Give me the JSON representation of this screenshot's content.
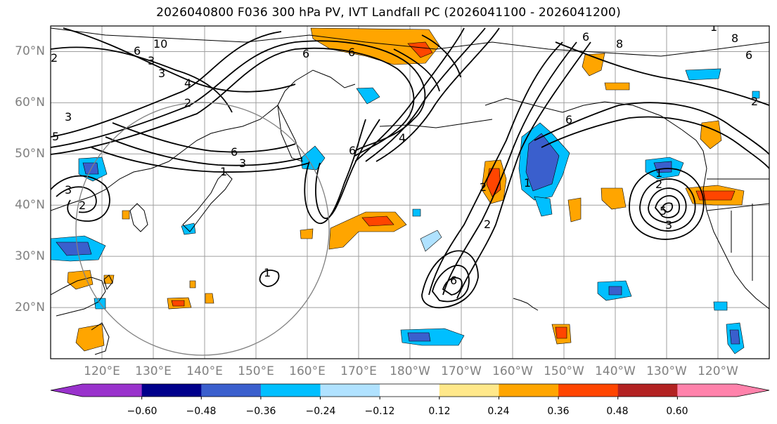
{
  "title": "2026040800 F036 300 hPa PV, IVT Landfall PC (2026041100 - 2026041200)",
  "map": {
    "projection": "PlateCarree",
    "lon_range_east": [
      110,
      250
    ],
    "lat_range": [
      10,
      75
    ],
    "lat_labels": [
      "70°N",
      "60°N",
      "50°N",
      "40°N",
      "30°N",
      "20°N"
    ],
    "lon_labels": [
      "120°E",
      "130°E",
      "140°E",
      "150°E",
      "160°E",
      "170°E",
      "180°W",
      "170°W",
      "160°W",
      "150°W",
      "140°W",
      "130°W",
      "120°W"
    ],
    "gridlines": true,
    "coastlines": true,
    "colors": {
      "coastline": "#000000",
      "gridline": "#808080",
      "contour": "#000000",
      "circle": "#808080",
      "tick_label": "#808080"
    },
    "contour_labels": [
      "10",
      "6",
      "3",
      "2",
      "4",
      "3",
      "2",
      "5",
      "3",
      "6",
      "1",
      "3",
      "6",
      "6",
      "4",
      "1",
      "3",
      "2",
      "6",
      "8",
      "6",
      "6",
      "1",
      "2",
      "2",
      "6",
      "8",
      "6",
      "1",
      "2",
      "3",
      "1",
      "5",
      "2"
    ]
  },
  "colorbar": {
    "extend": "both",
    "colors": [
      "#9932cc",
      "#00008b",
      "#3a5fcd",
      "#00bfff",
      "#b0e2ff",
      "#ffffff",
      "#ffe88a",
      "#ffa500",
      "#ff4500",
      "#b22222",
      "#ff82ab"
    ],
    "tick_labels": [
      "−0.60",
      "−0.48",
      "−0.36",
      "−0.24",
      "−0.12",
      "0.12",
      "0.24",
      "0.36",
      "0.48",
      "0.60"
    ]
  }
}
